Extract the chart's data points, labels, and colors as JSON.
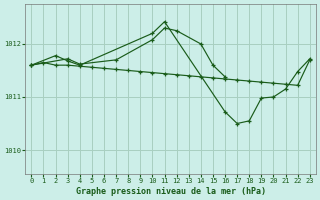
{
  "background_color": "#cceee8",
  "line_color": "#1a5c1a",
  "title": "Graphe pression niveau de la mer (hPa)",
  "xlim": [
    -0.5,
    23.5
  ],
  "ylim": [
    1009.55,
    1012.75
  ],
  "yticks": [
    1010,
    1011,
    1012
  ],
  "xticks": [
    0,
    1,
    2,
    3,
    4,
    5,
    6,
    7,
    8,
    9,
    10,
    11,
    12,
    13,
    14,
    15,
    16,
    17,
    18,
    19,
    20,
    21,
    22,
    23
  ],
  "s1_x": [
    0,
    1,
    2,
    3,
    4,
    5,
    6,
    7,
    8,
    9,
    10,
    11,
    12,
    13,
    14,
    15,
    16,
    17,
    18,
    19,
    20,
    21,
    22,
    23
  ],
  "s1_y": [
    1011.6,
    1011.65,
    1011.6,
    1011.6,
    1011.58,
    1011.56,
    1011.54,
    1011.52,
    1011.5,
    1011.48,
    1011.46,
    1011.44,
    1011.42,
    1011.4,
    1011.38,
    1011.36,
    1011.34,
    1011.32,
    1011.3,
    1011.28,
    1011.26,
    1011.24,
    1011.22,
    1011.7
  ],
  "s2_x": [
    0,
    3,
    4,
    7,
    10,
    11,
    12,
    14,
    15,
    16
  ],
  "s2_y": [
    1011.6,
    1011.72,
    1011.62,
    1011.7,
    1012.08,
    1012.3,
    1012.25,
    1012.0,
    1011.6,
    1011.38
  ],
  "s3_x": [
    0,
    2,
    3,
    4,
    10,
    11,
    16,
    17,
    18,
    19,
    20,
    21,
    22,
    23
  ],
  "s3_y": [
    1011.6,
    1011.78,
    1011.68,
    1011.6,
    1012.2,
    1012.42,
    1010.72,
    1010.5,
    1010.55,
    1010.98,
    1011.0,
    1011.15,
    1011.48,
    1011.72
  ]
}
